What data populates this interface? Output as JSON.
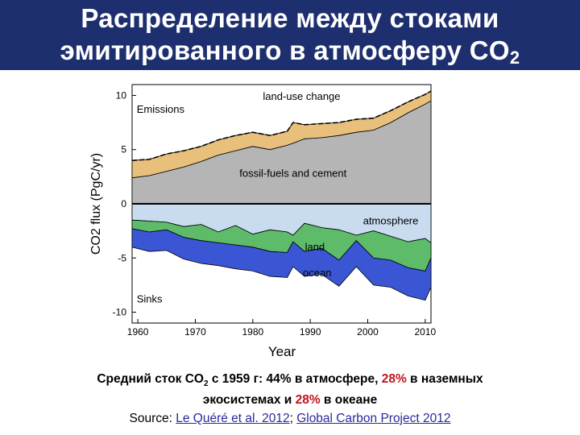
{
  "title": {
    "line1": "Распределение между стоками",
    "line2_main": "эмитированного в атмосферу CO",
    "line2_sub": "2"
  },
  "caption": {
    "part1": "Средний сток CO",
    "part1_sub": "2",
    "part2": " с 1959 г: 44% в атмосфере, ",
    "land_pct": "28%",
    "part3": " в наземных",
    "part4": "экосистемах и ",
    "ocean_pct": "28%",
    "part5": " в океане",
    "source_label": "Source: ",
    "source1": "Le Quéré et al. 2012",
    "separator": "; ",
    "source2": "Global Carbon Project 2012"
  },
  "colors": {
    "title_bg": "#1d2f6e",
    "fossil": "#b5b5b5",
    "landuse": "#e8c07c",
    "atmosphere": "#c9dcef",
    "land": "#5dbb6a",
    "ocean": "#3a56d4",
    "highlight": "#c0151c"
  },
  "chart_data": {
    "type": "area",
    "xlabel": "Year",
    "ylabel": "CO2 flux (PgC/yr)",
    "ylabel_sub": "2",
    "xlim": [
      1959,
      2011
    ],
    "ylim": [
      -11,
      11
    ],
    "x_ticks": [
      1960,
      1970,
      1980,
      1990,
      2000,
      2010
    ],
    "y_ticks": [
      10,
      5,
      0,
      -5,
      -10
    ],
    "x": [
      1959,
      1962,
      1965,
      1968,
      1971,
      1974,
      1977,
      1980,
      1983,
      1986,
      1987,
      1989,
      1992,
      1995,
      1998,
      2001,
      2004,
      2007,
      2010,
      2011
    ],
    "series": [
      {
        "name": "fossil-fuels and cement",
        "values": [
          2.4,
          2.6,
          3.0,
          3.4,
          3.9,
          4.5,
          4.9,
          5.3,
          5.0,
          5.4,
          5.6,
          6.0,
          6.1,
          6.3,
          6.6,
          6.8,
          7.5,
          8.4,
          9.2,
          9.5
        ]
      },
      {
        "name": "land-use change",
        "values": [
          1.6,
          1.5,
          1.6,
          1.5,
          1.4,
          1.4,
          1.4,
          1.3,
          1.3,
          1.3,
          1.9,
          1.3,
          1.3,
          1.2,
          1.2,
          1.1,
          1.1,
          1.0,
          0.9,
          0.9
        ]
      },
      {
        "name": "atmosphere",
        "values": [
          -1.5,
          -1.6,
          -1.7,
          -2.1,
          -1.9,
          -2.6,
          -2.0,
          -2.8,
          -2.4,
          -2.6,
          -2.9,
          -1.8,
          -2.2,
          -2.4,
          -2.9,
          -2.5,
          -3.0,
          -3.5,
          -3.2,
          -3.6
        ]
      },
      {
        "name": "land",
        "values": [
          -0.8,
          -1.0,
          -0.7,
          -1.0,
          -1.5,
          -1.0,
          -1.8,
          -1.2,
          -2.0,
          -1.9,
          -0.6,
          -2.6,
          -1.9,
          -2.8,
          -0.5,
          -2.5,
          -2.2,
          -2.4,
          -3.0,
          -1.4
        ]
      },
      {
        "name": "ocean",
        "values": [
          -1.7,
          -1.8,
          -1.9,
          -2.0,
          -2.1,
          -2.1,
          -2.2,
          -2.2,
          -2.3,
          -2.3,
          -2.3,
          -2.3,
          -2.4,
          -2.4,
          -2.4,
          -2.5,
          -2.5,
          -2.6,
          -2.7,
          -2.7
        ]
      }
    ],
    "annotations": {
      "emissions": "Emissions",
      "sinks": "Sinks",
      "land_use": "land-use change",
      "fossil": "fossil-fuels and cement",
      "atmosphere": "atmosphere",
      "land": "land",
      "ocean": "ocean"
    }
  }
}
